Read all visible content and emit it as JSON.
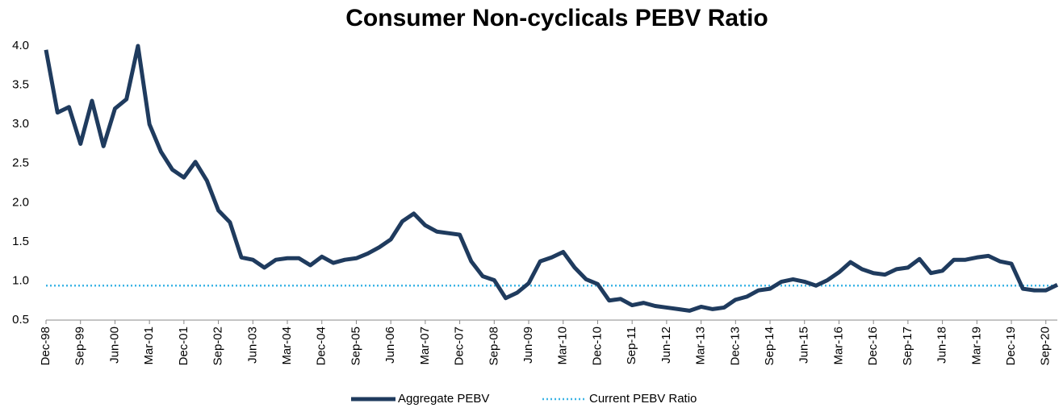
{
  "chart_data": {
    "type": "line",
    "title": "Consumer Non-cyclicals PEBV Ratio",
    "categories": [
      "Dec-98",
      null,
      null,
      "Sep-99",
      null,
      null,
      "Jun-00",
      null,
      null,
      "Mar-01",
      null,
      null,
      "Dec-01",
      null,
      null,
      "Sep-02",
      null,
      null,
      "Jun-03",
      null,
      null,
      "Mar-04",
      null,
      null,
      "Dec-04",
      null,
      null,
      "Sep-05",
      null,
      null,
      "Jun-06",
      null,
      null,
      "Mar-07",
      null,
      null,
      "Dec-07",
      null,
      null,
      "Sep-08",
      null,
      null,
      "Jun-09",
      null,
      null,
      "Mar-10",
      null,
      null,
      "Dec-10",
      null,
      null,
      "Sep-11",
      null,
      null,
      "Jun-12",
      null,
      null,
      "Mar-13",
      null,
      null,
      "Dec-13",
      null,
      null,
      "Sep-14",
      null,
      null,
      "Jun-15",
      null,
      null,
      "Mar-16",
      null,
      null,
      "Dec-16",
      null,
      null,
      "Sep-17",
      null,
      null,
      "Jun-18",
      null,
      null,
      "Mar-19",
      null,
      null,
      "Dec-19",
      null,
      null,
      "Sep-20",
      null
    ],
    "series": [
      {
        "name": "Aggregate PEBV",
        "color": "#1f3b5e",
        "values": [
          3.95,
          3.15,
          3.22,
          2.75,
          3.3,
          2.72,
          3.2,
          3.32,
          4.0,
          3.0,
          2.65,
          2.42,
          2.32,
          2.52,
          2.28,
          1.9,
          1.75,
          1.3,
          1.27,
          1.17,
          1.27,
          1.29,
          1.29,
          1.2,
          1.31,
          1.23,
          1.27,
          1.29,
          1.35,
          1.43,
          1.53,
          1.76,
          1.86,
          1.71,
          1.63,
          1.61,
          1.59,
          1.25,
          1.06,
          1.01,
          0.78,
          0.85,
          0.97,
          1.25,
          1.3,
          1.37,
          1.17,
          1.02,
          0.96,
          0.75,
          0.77,
          0.69,
          0.72,
          0.68,
          0.66,
          0.64,
          0.62,
          0.67,
          0.64,
          0.66,
          0.76,
          0.8,
          0.88,
          0.9,
          0.99,
          1.02,
          0.99,
          0.94,
          1.01,
          1.11,
          1.24,
          1.15,
          1.1,
          1.08,
          1.15,
          1.17,
          1.28,
          1.1,
          1.13,
          1.27,
          1.27,
          1.3,
          1.32,
          1.25,
          1.22,
          0.9,
          0.88,
          0.88,
          0.95
        ]
      }
    ],
    "reference": {
      "name": "Current PEBV Ratio",
      "value": 0.94,
      "color": "#3cb4e5"
    },
    "ylim": [
      0.5,
      4.0
    ],
    "yticks": [
      0.5,
      {
        "value": 1.0,
        "label": "1.0"
      },
      1.5,
      {
        "value": 2.0,
        "label": "2.0"
      },
      2.5,
      {
        "value": 3.0,
        "label": "3.0"
      },
      3.5,
      {
        "value": 4.0,
        "label": "4.0"
      }
    ],
    "grid": false
  }
}
